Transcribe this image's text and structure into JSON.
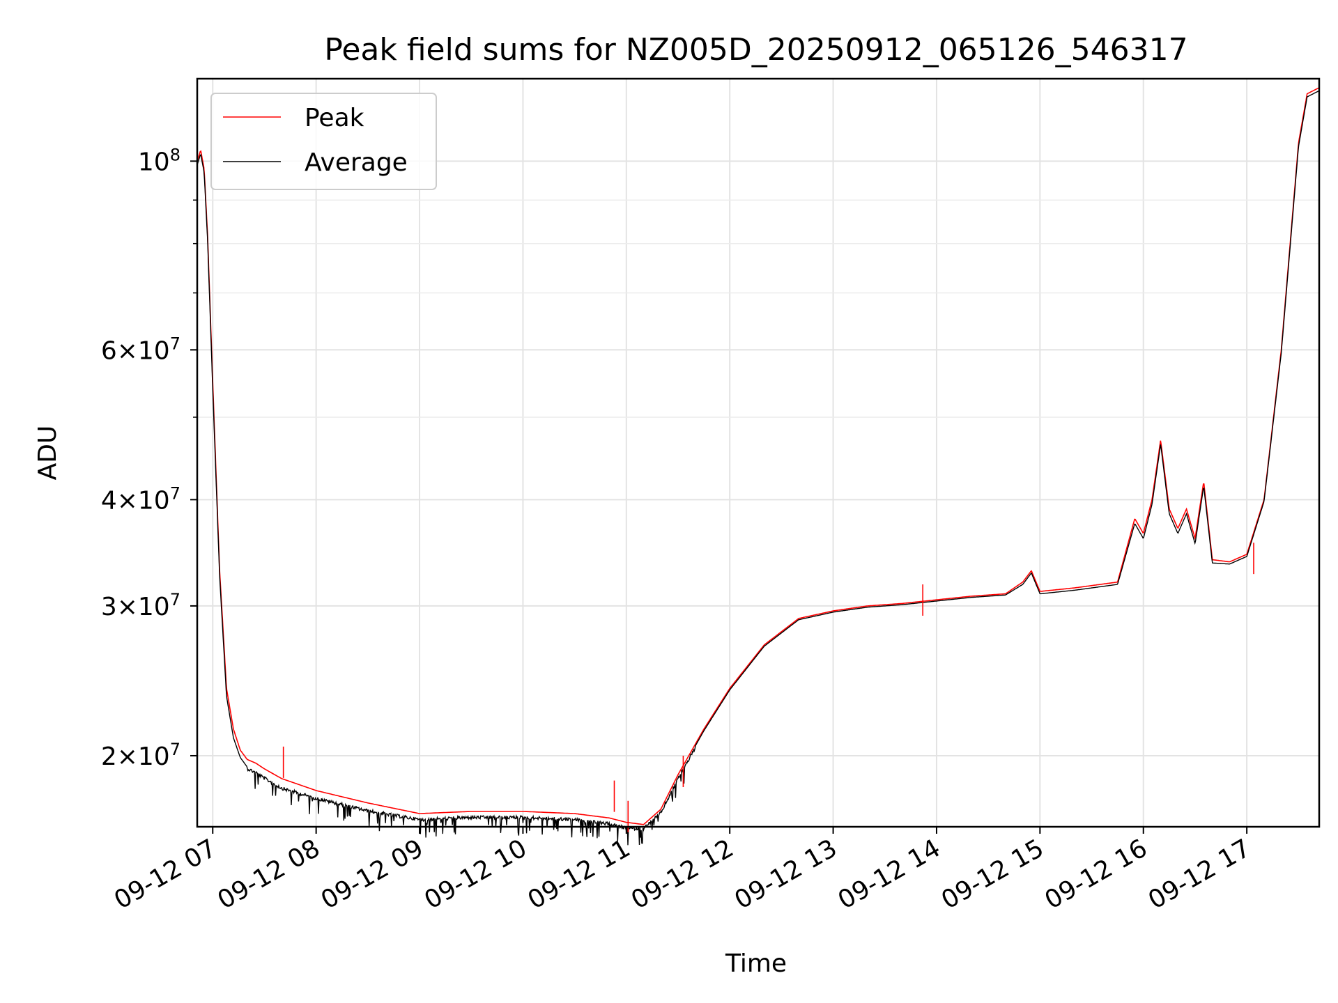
{
  "chart_data": {
    "type": "line",
    "title": "Peak field sums for NZ005D_20250912_065126_546317",
    "xlabel": "Time",
    "ylabel": "ADU",
    "yscale": "log",
    "grid": true,
    "legend_position": "top-left",
    "xlim": [
      "2025-09-12 06:51",
      "2025-09-12 17:42"
    ],
    "ylim": [
      16500000,
      125000000
    ],
    "x_ticks": [
      "09-12 07",
      "09-12 08",
      "09-12 09",
      "09-12 10",
      "09-12 11",
      "09-12 12",
      "09-12 13",
      "09-12 14",
      "09-12 15",
      "09-12 16",
      "09-12 17"
    ],
    "x_tick_times": [
      "2025-09-12 07:00",
      "2025-09-12 08:00",
      "2025-09-12 09:00",
      "2025-09-12 10:00",
      "2025-09-12 11:00",
      "2025-09-12 12:00",
      "2025-09-12 13:00",
      "2025-09-12 14:00",
      "2025-09-12 15:00",
      "2025-09-12 16:00",
      "2025-09-12 17:00"
    ],
    "y_major_ticks": [
      {
        "value": 100000000,
        "mantissa": "",
        "exp": "8"
      },
      {
        "value": 60000000,
        "mantissa": "6",
        "exp": "7"
      },
      {
        "value": 40000000,
        "mantissa": "4",
        "exp": "7"
      },
      {
        "value": 30000000,
        "mantissa": "3",
        "exp": "7"
      },
      {
        "value": 20000000,
        "mantissa": "2",
        "exp": "7"
      }
    ],
    "y_minor_ticks": [
      50000000,
      70000000,
      80000000,
      90000000
    ],
    "series": [
      {
        "name": "Peak",
        "color": "#ff0000",
        "x": [
          "2025-09-12 06:51",
          "2025-09-12 06:53",
          "2025-09-12 06:55",
          "2025-09-12 06:57",
          "2025-09-12 07:00",
          "2025-09-12 07:04",
          "2025-09-12 07:08",
          "2025-09-12 07:12",
          "2025-09-12 07:16",
          "2025-09-12 07:20",
          "2025-09-12 07:25",
          "2025-09-12 07:30",
          "2025-09-12 07:40",
          "2025-09-12 08:00",
          "2025-09-12 08:30",
          "2025-09-12 09:00",
          "2025-09-12 09:30",
          "2025-09-12 10:00",
          "2025-09-12 10:30",
          "2025-09-12 10:50",
          "2025-09-12 11:00",
          "2025-09-12 11:10",
          "2025-09-12 11:20",
          "2025-09-12 11:30",
          "2025-09-12 11:45",
          "2025-09-12 12:00",
          "2025-09-12 12:20",
          "2025-09-12 12:40",
          "2025-09-12 13:00",
          "2025-09-12 13:20",
          "2025-09-12 13:40",
          "2025-09-12 14:00",
          "2025-09-12 14:20",
          "2025-09-12 14:40",
          "2025-09-12 14:50",
          "2025-09-12 14:55",
          "2025-09-12 15:00",
          "2025-09-12 15:20",
          "2025-09-12 15:45",
          "2025-09-12 15:55",
          "2025-09-12 16:00",
          "2025-09-12 16:05",
          "2025-09-12 16:10",
          "2025-09-12 16:15",
          "2025-09-12 16:20",
          "2025-09-12 16:25",
          "2025-09-12 16:30",
          "2025-09-12 16:35",
          "2025-09-12 16:40",
          "2025-09-12 16:50",
          "2025-09-12 17:00",
          "2025-09-12 17:10",
          "2025-09-12 17:20",
          "2025-09-12 17:30",
          "2025-09-12 17:35",
          "2025-09-12 17:42"
        ],
        "y": [
          100000000,
          103000000,
          98000000,
          82000000,
          55000000,
          33000000,
          24000000,
          21500000,
          20300000,
          19800000,
          19600000,
          19300000,
          18800000,
          18200000,
          17600000,
          17100000,
          17200000,
          17200000,
          17100000,
          16900000,
          16700000,
          16600000,
          17300000,
          19000000,
          21500000,
          24000000,
          27000000,
          29000000,
          29600000,
          30000000,
          30200000,
          30500000,
          30800000,
          31000000,
          32000000,
          33000000,
          31200000,
          31500000,
          32000000,
          38000000,
          36500000,
          40000000,
          47000000,
          39000000,
          37000000,
          39000000,
          36000000,
          42000000,
          34000000,
          33800000,
          34500000,
          40000000,
          60000000,
          105000000,
          120000000,
          122000000
        ]
      },
      {
        "name": "Average",
        "color": "#000000",
        "x": [
          "2025-09-12 06:51",
          "2025-09-12 06:53",
          "2025-09-12 06:55",
          "2025-09-12 06:57",
          "2025-09-12 07:00",
          "2025-09-12 07:04",
          "2025-09-12 07:08",
          "2025-09-12 07:12",
          "2025-09-12 07:16",
          "2025-09-12 07:20",
          "2025-09-12 07:25",
          "2025-09-12 07:30",
          "2025-09-12 07:40",
          "2025-09-12 08:00",
          "2025-09-12 08:30",
          "2025-09-12 09:00",
          "2025-09-12 09:30",
          "2025-09-12 10:00",
          "2025-09-12 10:30",
          "2025-09-12 10:50",
          "2025-09-12 11:00",
          "2025-09-12 11:10",
          "2025-09-12 11:20",
          "2025-09-12 11:30",
          "2025-09-12 11:45",
          "2025-09-12 12:00",
          "2025-09-12 12:20",
          "2025-09-12 12:40",
          "2025-09-12 13:00",
          "2025-09-12 13:20",
          "2025-09-12 13:40",
          "2025-09-12 14:00",
          "2025-09-12 14:20",
          "2025-09-12 14:40",
          "2025-09-12 14:50",
          "2025-09-12 14:55",
          "2025-09-12 15:00",
          "2025-09-12 15:20",
          "2025-09-12 15:45",
          "2025-09-12 15:55",
          "2025-09-12 16:00",
          "2025-09-12 16:05",
          "2025-09-12 16:10",
          "2025-09-12 16:15",
          "2025-09-12 16:20",
          "2025-09-12 16:25",
          "2025-09-12 16:30",
          "2025-09-12 16:35",
          "2025-09-12 16:40",
          "2025-09-12 16:50",
          "2025-09-12 17:00",
          "2025-09-12 17:10",
          "2025-09-12 17:20",
          "2025-09-12 17:30",
          "2025-09-12 17:35",
          "2025-09-12 17:42"
        ],
        "y": [
          99000000,
          102000000,
          97000000,
          81000000,
          54000000,
          32500000,
          23500000,
          21000000,
          19900000,
          19400000,
          19200000,
          18900000,
          18400000,
          17900000,
          17300000,
          16900000,
          17000000,
          17000000,
          16900000,
          16700000,
          16500000,
          16500000,
          17200000,
          18900000,
          21400000,
          23900000,
          26900000,
          28900000,
          29500000,
          29900000,
          30100000,
          30400000,
          30700000,
          30900000,
          31800000,
          32800000,
          31000000,
          31300000,
          31800000,
          37500000,
          36000000,
          39500000,
          46500000,
          38500000,
          36500000,
          38500000,
          35500000,
          41500000,
          33700000,
          33600000,
          34300000,
          39800000,
          59500000,
          104000000,
          119000000,
          121000000
        ]
      }
    ],
    "spikes": [
      {
        "x": "2025-09-12 07:41",
        "y": 20500000
      },
      {
        "x": "2025-09-12 10:53",
        "y": 18700000
      },
      {
        "x": "2025-09-12 11:01",
        "y": 17700000
      },
      {
        "x": "2025-09-12 11:33",
        "y": 20000000
      },
      {
        "x": "2025-09-12 13:52",
        "y": 31800000
      },
      {
        "x": "2025-09-12 17:04",
        "y": 35600000
      }
    ]
  }
}
